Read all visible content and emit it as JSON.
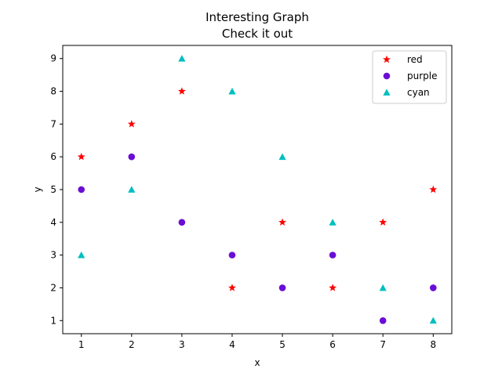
{
  "chart_data": {
    "type": "scatter",
    "title": "Interesting Graph",
    "subtitle": "Check it out",
    "xlabel": "x",
    "ylabel": "y",
    "xlim": [
      0.63,
      8.37
    ],
    "ylim": [
      0.6,
      9.4
    ],
    "xticks": [
      1,
      2,
      3,
      4,
      5,
      6,
      7,
      8
    ],
    "yticks": [
      1,
      2,
      3,
      4,
      5,
      6,
      7,
      8,
      9
    ],
    "grid": false,
    "legend_position": "top-right",
    "x": [
      1,
      2,
      3,
      4,
      5,
      6,
      7,
      8
    ],
    "series": [
      {
        "name": "red",
        "marker": "star",
        "color": "#ff0000",
        "values": [
          6,
          7,
          8,
          2,
          4,
          2,
          4,
          5
        ]
      },
      {
        "name": "purple",
        "marker": "circle",
        "color": "#6a0dd6",
        "values": [
          5,
          6,
          4,
          3,
          2,
          3,
          1,
          2
        ]
      },
      {
        "name": "cyan",
        "marker": "triangle",
        "color": "#00bfbf",
        "values": [
          3,
          5,
          9,
          8,
          6,
          4,
          2,
          1
        ]
      }
    ]
  }
}
